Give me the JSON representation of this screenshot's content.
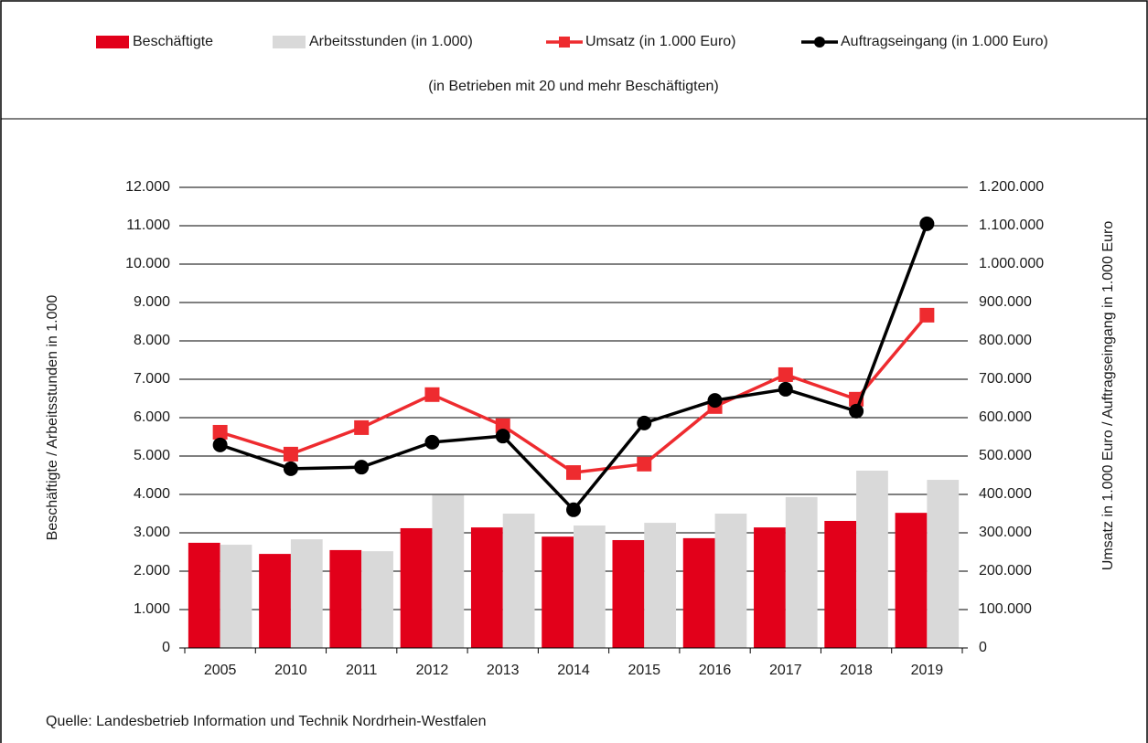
{
  "chart_data": {
    "type": "combo",
    "subtitle": "(in Betrieben mit 20 und mehr Beschäftigten)",
    "y_label": "Beschäftigte / Arbeitsstunden in 1.000",
    "y2_label": "Umsatz in 1.000 Euro / Auftragseingang in 1.000 Euro",
    "source": "Quelle: Landesbetrieb Information und Technik Nordrhein-Westfalen",
    "categories": [
      "2005",
      "2010",
      "2011",
      "2012",
      "2013",
      "2014",
      "2015",
      "2016",
      "2017",
      "2018",
      "2019"
    ],
    "series": [
      {
        "name": "Beschäftigte",
        "type": "bar",
        "color": "#e2001a",
        "values": [
          2740,
          2450,
          2550,
          3120,
          3140,
          2900,
          2810,
          2860,
          3140,
          3310,
          3520
        ]
      },
      {
        "name": "Arbeitsstunden (in 1.000)",
        "type": "bar",
        "color": "#d9d9d9",
        "values": [
          2690,
          2830,
          2520,
          3980,
          3500,
          3190,
          3260,
          3500,
          3930,
          4620,
          4380
        ]
      },
      {
        "name": "Umsatz (in 1.000 Euro)",
        "type": "line",
        "marker": "square",
        "axis": "y2",
        "color": "#ee2b2f",
        "values": [
          562000,
          505000,
          574000,
          660000,
          579000,
          457000,
          479000,
          629000,
          712000,
          648000,
          867000
        ]
      },
      {
        "name": "Auftragseingang (in 1.000 Euro)",
        "type": "line",
        "marker": "circle",
        "axis": "y2",
        "color": "#000000",
        "values": [
          529000,
          467000,
          471000,
          536000,
          552000,
          360000,
          586000,
          645000,
          674000,
          617000,
          1105000
        ]
      }
    ],
    "ylim": [
      0,
      12000
    ],
    "yticks": [
      0,
      {
        "value": 1000,
        "label": "1.000"
      },
      {
        "value": 2000,
        "label": "2.000"
      },
      {
        "value": 3000,
        "label": "3.000"
      },
      {
        "value": 4000,
        "label": "4.000"
      },
      {
        "value": 5000,
        "label": "5.000"
      },
      {
        "value": 6000,
        "label": "6.000"
      },
      {
        "value": 7000,
        "label": "7.000"
      },
      {
        "value": 8000,
        "label": "8.000"
      },
      {
        "value": 9000,
        "label": "9.000"
      },
      {
        "value": 10000,
        "label": "10.000"
      },
      {
        "value": 11000,
        "label": "11.000"
      },
      {
        "value": 12000,
        "label": "12.000"
      }
    ],
    "y2lim": [
      0,
      1200000
    ],
    "y2ticks": [
      0,
      {
        "value": 100000,
        "label": "100.000"
      },
      {
        "value": 200000,
        "label": "200.000"
      },
      {
        "value": 300000,
        "label": "300.000"
      },
      {
        "value": 400000,
        "label": "400.000"
      },
      {
        "value": 500000,
        "label": "500.000"
      },
      {
        "value": 600000,
        "label": "600.000"
      },
      {
        "value": 700000,
        "label": "700.000"
      },
      {
        "value": 800000,
        "label": "800.000"
      },
      {
        "value": 900000,
        "label": "900.000"
      },
      {
        "value": 1000000,
        "label": "1.000.000"
      },
      {
        "value": 1100000,
        "label": "1.100.000"
      },
      {
        "value": 1200000,
        "label": "1.200.000"
      }
    ],
    "grid": true,
    "legend": "top"
  }
}
